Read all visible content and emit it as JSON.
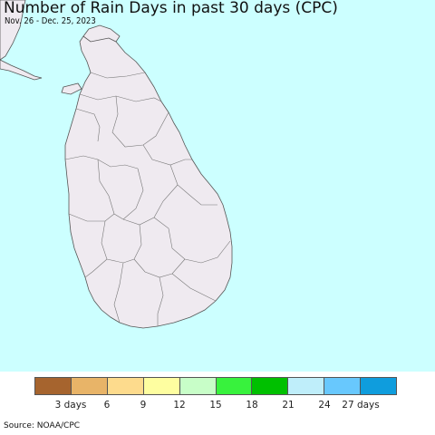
{
  "title": "Number of Rain Days in past 30 days (CPC)",
  "subtitle": "Nov. 26 - Dec. 25, 2023",
  "colors": {
    "ocean": "#ccffff",
    "land": "#efeaf0",
    "border": "#555555"
  },
  "legend": {
    "colors": [
      "#a6642e",
      "#e8b468",
      "#fddb8d",
      "#fefea0",
      "#c8fec8",
      "#38f23d",
      "#00c000",
      "#bfeefa",
      "#68c8fd",
      "#0f9ddd"
    ],
    "tick_labels": [
      "3 days",
      "6",
      "9",
      "12",
      "15",
      "18",
      "21",
      "24",
      "27 days"
    ]
  },
  "source": "Source: NOAA/CPC"
}
